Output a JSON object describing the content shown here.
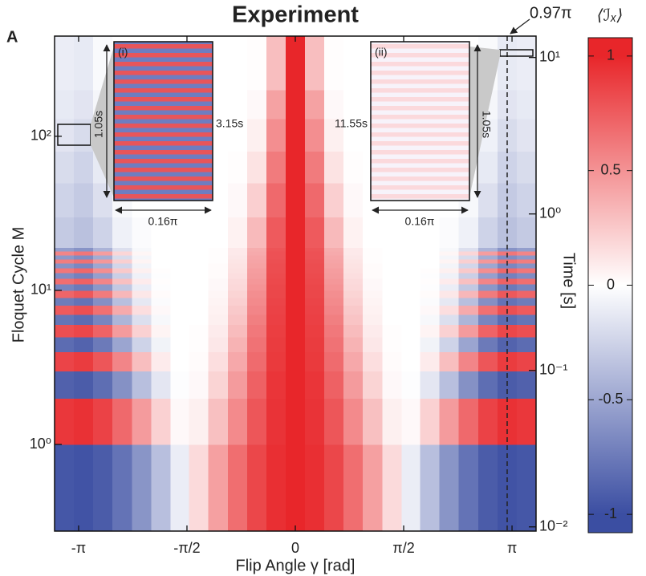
{
  "chart_data": {
    "type": "heatmap",
    "panel": "A",
    "title": "Experiment",
    "x_label": "Flip Angle γ [rad]",
    "y_label": "Floquet Cycle M",
    "y2_label": "Time [s]",
    "colorbar_label": "⟨ℐₓ⟩",
    "xlim": [
      -3.49,
      3.49
    ],
    "xticks": [
      {
        "value": -3.1416,
        "label": "-π"
      },
      {
        "value": -1.5708,
        "label": "-π/2"
      },
      0,
      {
        "value": 1.5708,
        "label": "π/2"
      },
      {
        "value": 3.1416,
        "label": "π"
      }
    ],
    "ylim": [
      0.274,
      447
    ],
    "yscale": "log",
    "yticks": [
      {
        "value": 1,
        "label": "10⁰"
      },
      {
        "value": 10,
        "label": "10¹"
      },
      {
        "value": 100,
        "label": "10²"
      }
    ],
    "y2lim": [
      0.0094,
      13.7
    ],
    "y2ticks": [
      {
        "value": 0.01,
        "label": "10⁻²"
      },
      {
        "value": 0.1,
        "label": "10⁻¹"
      },
      {
        "value": 1,
        "label": "10⁰"
      },
      {
        "value": 10,
        "label": "10¹"
      }
    ],
    "zlim": [
      -1.08,
      1.08
    ],
    "zticks": [
      -1,
      -0.5,
      0,
      0.5,
      1
    ],
    "colorscale": [
      "#3b4ea2",
      "#ffffff",
      "#e8262a"
    ],
    "x_bins": [
      -3.49,
      -3.21,
      -2.93,
      -2.65,
      -2.37,
      -2.09,
      -1.81,
      -1.54,
      -1.26,
      -0.98,
      -0.7,
      -0.42,
      -0.14,
      0.14,
      0.42,
      0.7,
      0.98,
      1.26,
      1.54,
      1.81,
      2.09,
      2.37,
      2.65,
      2.93,
      3.21,
      3.49
    ],
    "y_bins": [
      0.274,
      1,
      2,
      3,
      4,
      5,
      6,
      7,
      8,
      9,
      10,
      11,
      12,
      13,
      14,
      15,
      16,
      17,
      18,
      19,
      30,
      50,
      80,
      130,
      200,
      447
    ],
    "z": [
      [
        -0.95,
        -0.97,
        -0.92,
        -0.79,
        -0.6,
        -0.36,
        -0.1,
        0.17,
        0.44,
        0.67,
        0.85,
        0.96,
        1,
        0.96,
        0.85,
        0.67,
        0.44,
        0.17,
        -0.1,
        -0.36,
        -0.6,
        -0.79,
        -0.92,
        -0.97,
        -0.95
      ],
      [
        0.92,
        0.95,
        0.87,
        0.69,
        0.46,
        0.21,
        0.03,
        0.07,
        0.29,
        0.54,
        0.78,
        0.94,
        1,
        0.94,
        0.78,
        0.54,
        0.29,
        0.07,
        0.03,
        0.21,
        0.46,
        0.69,
        0.87,
        0.95,
        0.92
      ],
      [
        -0.89,
        -0.92,
        -0.82,
        -0.62,
        -0.36,
        -0.14,
        -0.01,
        0.03,
        0.2,
        0.46,
        0.73,
        0.93,
        1,
        0.93,
        0.73,
        0.46,
        0.2,
        0.03,
        -0.01,
        -0.14,
        -0.36,
        -0.62,
        -0.82,
        -0.92,
        -0.89
      ],
      [
        0.86,
        0.9,
        0.78,
        0.56,
        0.3,
        0.09,
        0,
        0.02,
        0.15,
        0.4,
        0.68,
        0.91,
        1,
        0.91,
        0.68,
        0.4,
        0.15,
        0.02,
        0,
        0.09,
        0.3,
        0.56,
        0.78,
        0.9,
        0.86
      ],
      [
        -0.83,
        -0.88,
        -0.75,
        -0.51,
        -0.25,
        -0.07,
        0,
        0.01,
        0.11,
        0.35,
        0.65,
        0.9,
        1,
        0.9,
        0.65,
        0.35,
        0.11,
        0.01,
        0,
        -0.07,
        -0.25,
        -0.51,
        -0.75,
        -0.88,
        -0.83
      ],
      [
        0.81,
        0.85,
        0.72,
        0.46,
        0.21,
        0.05,
        0,
        0.01,
        0.09,
        0.31,
        0.62,
        0.89,
        1,
        0.89,
        0.62,
        0.31,
        0.09,
        0.01,
        0,
        0.05,
        0.21,
        0.46,
        0.72,
        0.85,
        0.81
      ],
      [
        -0.78,
        -0.83,
        -0.69,
        -0.42,
        -0.18,
        -0.04,
        0,
        0,
        0.07,
        0.27,
        0.59,
        0.88,
        1,
        0.88,
        0.59,
        0.27,
        0.07,
        0,
        0,
        -0.04,
        -0.18,
        -0.42,
        -0.69,
        -0.83,
        -0.78
      ],
      [
        0.76,
        0.81,
        0.66,
        0.39,
        0.15,
        0.03,
        0,
        0,
        0.06,
        0.25,
        0.56,
        0.87,
        1,
        0.87,
        0.56,
        0.25,
        0.06,
        0,
        0,
        0.03,
        0.15,
        0.39,
        0.66,
        0.81,
        0.76
      ],
      [
        -0.74,
        -0.79,
        -0.63,
        -0.36,
        -0.13,
        -0.02,
        0,
        0,
        0.05,
        0.22,
        0.54,
        0.86,
        1,
        0.86,
        0.54,
        0.22,
        0.05,
        0,
        0,
        -0.02,
        -0.13,
        -0.36,
        -0.63,
        -0.79,
        -0.74
      ],
      [
        0.71,
        0.77,
        0.61,
        0.33,
        0.11,
        0.02,
        0,
        0,
        0.04,
        0.2,
        0.52,
        0.85,
        1,
        0.85,
        0.52,
        0.2,
        0.04,
        0,
        0,
        0.02,
        0.11,
        0.33,
        0.61,
        0.77,
        0.71
      ],
      [
        -0.69,
        -0.75,
        -0.59,
        -0.31,
        -0.1,
        -0.01,
        0,
        0,
        0.03,
        0.18,
        0.5,
        0.85,
        1,
        0.85,
        0.5,
        0.18,
        0.03,
        0,
        0,
        -0.01,
        -0.1,
        -0.31,
        -0.59,
        -0.75,
        -0.69
      ],
      [
        0.67,
        0.73,
        0.56,
        0.29,
        0.09,
        0.01,
        0,
        0,
        0.03,
        0.17,
        0.48,
        0.84,
        1,
        0.84,
        0.48,
        0.17,
        0.03,
        0,
        0,
        0.01,
        0.09,
        0.29,
        0.56,
        0.73,
        0.67
      ],
      [
        -0.65,
        -0.71,
        -0.54,
        -0.27,
        -0.08,
        -0.01,
        0,
        0,
        0.02,
        0.15,
        0.46,
        0.83,
        1,
        0.83,
        0.46,
        0.15,
        0.02,
        0,
        0,
        -0.01,
        -0.08,
        -0.27,
        -0.54,
        -0.71,
        -0.65
      ],
      [
        0.63,
        0.7,
        0.52,
        0.25,
        0.07,
        0.01,
        0,
        0,
        0.02,
        0.14,
        0.45,
        0.82,
        1,
        0.82,
        0.45,
        0.14,
        0.02,
        0,
        0,
        0.01,
        0.07,
        0.25,
        0.52,
        0.7,
        0.63
      ],
      [
        -0.61,
        -0.68,
        -0.5,
        -0.23,
        -0.06,
        0,
        0,
        0,
        0.02,
        0.13,
        0.43,
        0.82,
        1,
        0.82,
        0.43,
        0.13,
        0.02,
        0,
        0,
        0,
        -0.06,
        -0.23,
        -0.5,
        -0.68,
        -0.61
      ],
      [
        0.6,
        0.66,
        0.48,
        0.22,
        0.05,
        0,
        0,
        0,
        0.01,
        0.12,
        0.42,
        0.81,
        1,
        0.81,
        0.42,
        0.12,
        0.01,
        0,
        0,
        0,
        0.05,
        0.22,
        0.48,
        0.66,
        0.6
      ],
      [
        -0.58,
        -0.65,
        -0.47,
        -0.2,
        -0.05,
        0,
        0,
        0,
        0.01,
        0.11,
        0.41,
        0.8,
        1,
        0.8,
        0.41,
        0.11,
        0.01,
        0,
        0,
        0,
        -0.05,
        -0.2,
        -0.47,
        -0.65,
        -0.58
      ],
      [
        0.56,
        0.63,
        0.45,
        0.19,
        0.04,
        0,
        0,
        0,
        0.01,
        0.1,
        0.39,
        0.8,
        1,
        0.8,
        0.39,
        0.1,
        0.01,
        0,
        0,
        0,
        0.04,
        0.19,
        0.45,
        0.63,
        0.56
      ],
      [
        -0.55,
        -0.61,
        -0.43,
        -0.18,
        -0.04,
        0,
        0,
        0,
        0.01,
        0.1,
        0.38,
        0.79,
        1,
        0.79,
        0.38,
        0.1,
        0.01,
        0,
        0,
        0,
        -0.04,
        -0.18,
        -0.43,
        -0.61,
        -0.55
      ],
      [
        -0.3,
        -0.35,
        -0.25,
        -0.08,
        -0.02,
        0,
        0,
        0,
        0,
        0.06,
        0.32,
        0.76,
        1,
        0.76,
        0.32,
        0.06,
        0,
        0,
        0,
        0,
        -0.02,
        -0.08,
        -0.25,
        -0.35,
        -0.3
      ],
      [
        -0.25,
        -0.3,
        -0.18,
        -0.04,
        0,
        0,
        0,
        0,
        0,
        0.03,
        0.22,
        0.69,
        1,
        0.69,
        0.22,
        0.03,
        0,
        0,
        0,
        0,
        0,
        -0.04,
        -0.18,
        -0.3,
        -0.25
      ],
      [
        -0.2,
        -0.25,
        -0.12,
        -0.02,
        0,
        0,
        0,
        0,
        0,
        0.01,
        0.13,
        0.61,
        1,
        0.61,
        0.13,
        0.01,
        0,
        0,
        0,
        0,
        0,
        -0.02,
        -0.12,
        -0.25,
        -0.2
      ],
      [
        -0.15,
        -0.2,
        -0.08,
        0,
        0,
        0,
        0,
        0,
        0,
        0,
        0.07,
        0.52,
        1,
        0.52,
        0.07,
        0,
        0,
        0,
        0,
        0,
        0,
        0,
        -0.08,
        -0.2,
        -0.15
      ],
      [
        -0.12,
        -0.15,
        -0.05,
        0,
        0,
        0,
        0,
        0,
        0,
        0,
        0.03,
        0.43,
        1,
        0.43,
        0.03,
        0,
        0,
        0,
        0,
        0,
        0,
        0,
        -0.05,
        -0.15,
        -0.12
      ],
      [
        -0.1,
        -0.12,
        -0.03,
        0,
        0,
        0,
        0,
        0,
        0,
        0,
        0.01,
        0.3,
        1,
        0.3,
        0.01,
        0,
        0,
        0,
        0,
        0,
        0,
        0,
        -0.03,
        -0.12,
        -0.1
      ]
    ],
    "annotations": {
      "marker": "0.97π",
      "inset_i": {
        "tag": "(i)",
        "height": "1.05s",
        "start": "3.15s",
        "width": "0.16π"
      },
      "inset_ii": {
        "tag": "(ii)",
        "height": "1.05s",
        "start": "11.55s",
        "width": "0.16π"
      }
    }
  }
}
